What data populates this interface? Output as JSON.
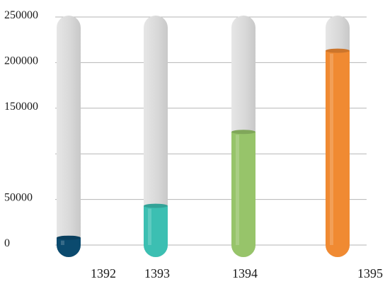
{
  "chart_data": {
    "type": "bar",
    "style": "test-tube",
    "title": "",
    "xlabel": "",
    "ylabel": "",
    "categories": [
      "1392",
      "1393",
      "1394",
      "1395"
    ],
    "values": [
      8000,
      43000,
      124000,
      213000
    ],
    "colors": [
      "#0b4a6e",
      "#3cbfb2",
      "#97c46a",
      "#f08a32"
    ],
    "y_ticks": [
      "0",
      "50000",
      "150000",
      "200000",
      "250000"
    ],
    "y_tick_values": [
      0,
      50000,
      150000,
      200000,
      250000
    ],
    "ylim": [
      0,
      250000
    ],
    "grid": true
  }
}
